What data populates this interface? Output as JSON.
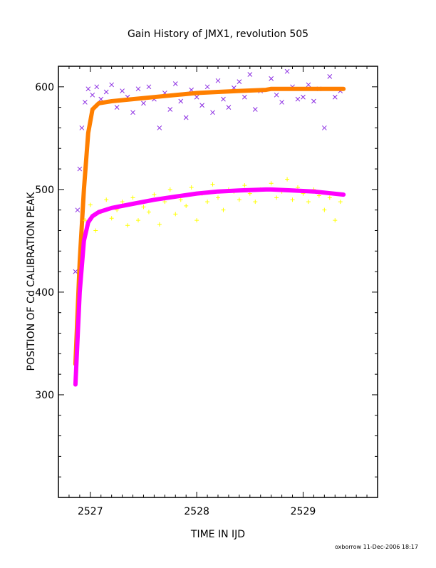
{
  "chart_data": {
    "type": "scatter",
    "title": "Gain History of JMX1, revolution 505",
    "xlabel": "TIME IN IJD",
    "ylabel": "POSITION OF Cd CALIBRATION PEAK",
    "footer": "oxborrow 11-Dec-2006 18:17",
    "xlim": [
      2526.7,
      2529.7
    ],
    "ylim": [
      200,
      620
    ],
    "xticks": [
      2527,
      2528,
      2529
    ],
    "xtick_labels": [
      "2527",
      "2528",
      "2529"
    ],
    "yticks": [
      300,
      400,
      500,
      600
    ],
    "ytick_labels": [
      "300",
      "400",
      "500",
      "600"
    ],
    "grid": false,
    "legend": "none",
    "colors": {
      "upper_points": "#8a2be2",
      "upper_fit": "#ff7f00",
      "lower_points": "#ffff00",
      "lower_fit": "#ff00ff"
    },
    "series": [
      {
        "marker": "x",
        "color": "#8a2be2",
        "x": [
          2526.86,
          2526.88,
          2526.9,
          2526.92,
          2526.95,
          2526.98,
          2527.02,
          2527.06,
          2527.1,
          2527.15,
          2527.2,
          2527.25,
          2527.3,
          2527.35,
          2527.4,
          2527.45,
          2527.5,
          2527.55,
          2527.6,
          2527.65,
          2527.7,
          2527.75,
          2527.8,
          2527.85,
          2527.9,
          2527.95,
          2528.0,
          2528.05,
          2528.1,
          2528.15,
          2528.2,
          2528.25,
          2528.3,
          2528.35,
          2528.4,
          2528.45,
          2528.5,
          2528.55,
          2528.6,
          2528.7,
          2528.75,
          2528.8,
          2528.85,
          2528.9,
          2528.95,
          2529.0,
          2529.05,
          2529.1,
          2529.15,
          2529.2,
          2529.25,
          2529.3,
          2529.35
        ],
        "y": [
          420,
          480,
          520,
          560,
          585,
          598,
          592,
          600,
          588,
          595,
          602,
          580,
          596,
          590,
          575,
          598,
          584,
          600,
          588,
          560,
          594,
          578,
          603,
          586,
          570,
          597,
          590,
          582,
          600,
          575,
          606,
          588,
          580,
          599,
          605,
          590,
          612,
          578,
          596,
          608,
          592,
          585,
          615,
          600,
          588,
          590,
          602,
          586,
          598,
          560,
          610,
          590,
          596
        ]
      },
      {
        "marker": "line",
        "color": "#ff7f00",
        "x": [
          2526.86,
          2526.9,
          2526.94,
          2526.98,
          2527.02,
          2527.08,
          2527.2,
          2527.4,
          2527.6,
          2527.8,
          2528.0,
          2528.2,
          2528.4,
          2528.65,
          2528.7,
          2528.9,
          2529.1,
          2529.38
        ],
        "y": [
          330,
          430,
          500,
          555,
          578,
          584,
          586,
          588,
          590,
          592,
          594,
          595,
          596,
          597,
          598,
          598,
          598,
          598
        ]
      },
      {
        "marker": "+",
        "color": "#ffff00",
        "x": [
          2526.95,
          2527.0,
          2527.05,
          2527.1,
          2527.15,
          2527.2,
          2527.25,
          2527.3,
          2527.35,
          2527.4,
          2527.45,
          2527.5,
          2527.55,
          2527.6,
          2527.65,
          2527.7,
          2527.75,
          2527.8,
          2527.85,
          2527.9,
          2527.95,
          2528.0,
          2528.05,
          2528.1,
          2528.15,
          2528.2,
          2528.25,
          2528.3,
          2528.35,
          2528.4,
          2528.45,
          2528.5,
          2528.55,
          2528.6,
          2528.7,
          2528.75,
          2528.8,
          2528.85,
          2528.9,
          2528.95,
          2529.0,
          2529.05,
          2529.1,
          2529.15,
          2529.2,
          2529.25,
          2529.3,
          2529.35
        ],
        "y": [
          470,
          485,
          460,
          478,
          490,
          472,
          480,
          488,
          465,
          492,
          470,
          483,
          478,
          495,
          466,
          488,
          500,
          476,
          490,
          484,
          502,
          470,
          496,
          488,
          505,
          492,
          480,
          500,
          498,
          490,
          504,
          496,
          488,
          500,
          506,
          492,
          498,
          510,
          490,
          502,
          496,
          488,
          500,
          494,
          480,
          492,
          470,
          488
        ]
      },
      {
        "marker": "line",
        "color": "#ff00ff",
        "x": [
          2526.86,
          2526.9,
          2526.94,
          2526.98,
          2527.02,
          2527.08,
          2527.2,
          2527.4,
          2527.6,
          2527.8,
          2528.0,
          2528.2,
          2528.4,
          2528.65,
          2528.7,
          2528.9,
          2529.1,
          2529.38
        ],
        "y": [
          310,
          400,
          450,
          468,
          474,
          478,
          482,
          486,
          490,
          493,
          496,
          498,
          499,
          500,
          500,
          499,
          498,
          495
        ]
      }
    ]
  }
}
